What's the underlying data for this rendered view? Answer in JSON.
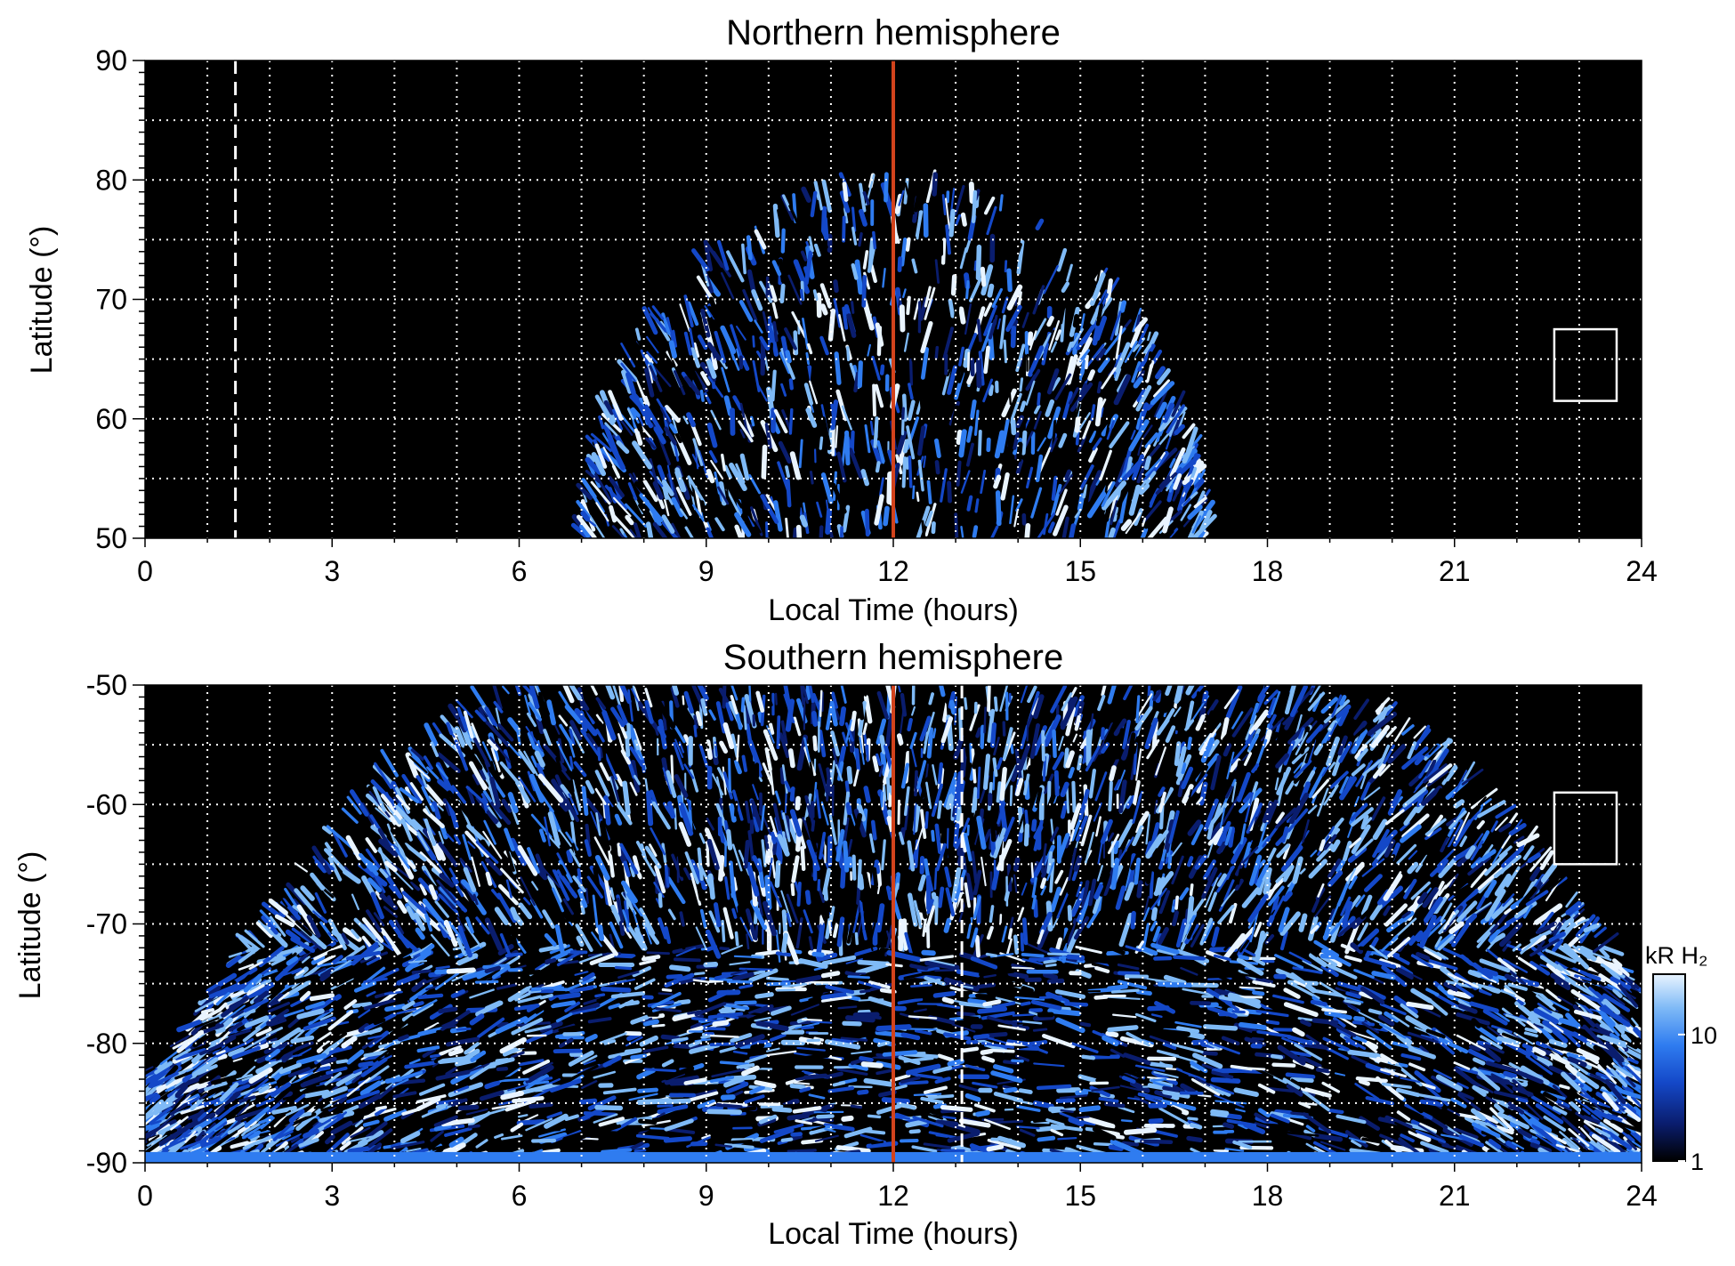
{
  "colors": {
    "background": "#000000",
    "grid": "#ffffff",
    "noon_line": "#d2431c",
    "box": "#ffffff",
    "colormap": [
      "#000000",
      "#0a1d6e",
      "#1448c8",
      "#2f7cf0",
      "#7fbaf6",
      "#e9f4ff"
    ]
  },
  "chart_data": [
    {
      "type": "heatmap",
      "title": "Northern hemisphere",
      "xlabel": "Local Time (hours)",
      "ylabel": "Latitude (°)",
      "xlim": [
        0,
        24
      ],
      "ylim": [
        50,
        90
      ],
      "x_ticks": [
        "0",
        "3",
        "6",
        "9",
        "12",
        "15",
        "18",
        "21",
        "24"
      ],
      "y_ticks": [
        "50",
        "60",
        "70",
        "80",
        "90"
      ],
      "grid": true,
      "noon_line_x": 12,
      "dashed_line_x": 1.45,
      "box": {
        "x": [
          22.6,
          23.6
        ],
        "y": [
          61.5,
          67.5
        ]
      },
      "emission_region": "dome from 7 to 17 h local time, peaking near 80° latitude at noon; bright patch near 9.5 h, 65°; dark hole near 11–13 h, 67–70°"
    },
    {
      "type": "heatmap",
      "title": "Southern hemisphere",
      "xlabel": "Local Time (hours)",
      "ylabel": "Latitude (°)",
      "xlim": [
        0,
        24
      ],
      "ylim": [
        -90,
        -50
      ],
      "x_ticks": [
        "0",
        "3",
        "6",
        "9",
        "12",
        "15",
        "18",
        "21",
        "24"
      ],
      "y_ticks": [
        "-90",
        "-80",
        "-70",
        "-60",
        "-50"
      ],
      "grid": true,
      "noon_line_x": 12,
      "dashed_line_x": 13.1,
      "box": {
        "x": [
          22.6,
          23.6
        ],
        "y": [
          -65,
          -59
        ]
      },
      "emission_region": "coverage from 6–19 h near -50° widening to 0–24 h near -85°; bright arcs near 6.5 h and 17.5 h; bright band near 5–6 h, -74° to -76°",
      "colorbar": {
        "label": "kR H₂",
        "scale": "log",
        "ticks": [
          "1",
          "10"
        ],
        "range": [
          1,
          30
        ]
      }
    }
  ]
}
